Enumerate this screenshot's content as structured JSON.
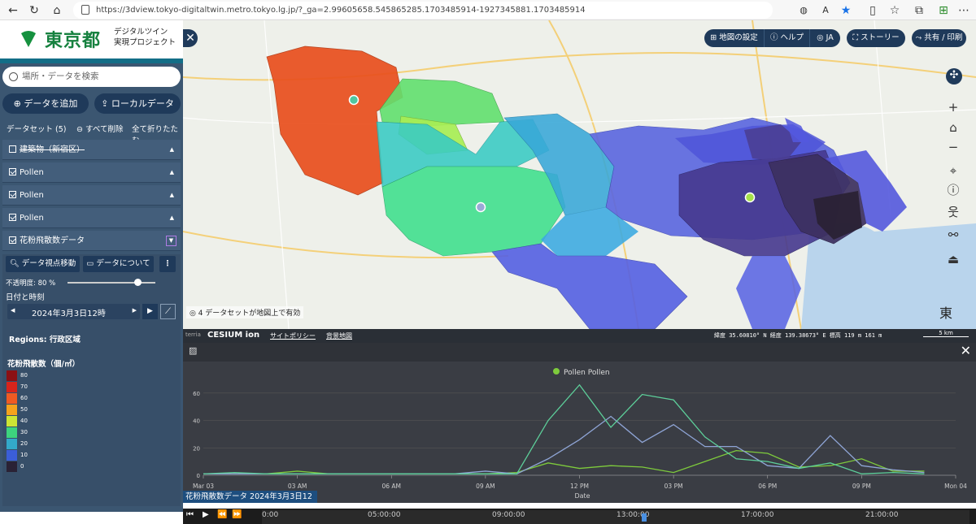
{
  "browser": {
    "url": "https://3dview.tokyo-digitaltwin.metro.tokyo.lg.jp/?_ga=2.99605658.545865285.1703485914-1927345881.1703485914",
    "icons": [
      "back-icon",
      "forward-icon",
      "reload-icon",
      "home-icon",
      "lock-icon",
      "read-aloud-icon",
      "star-icon",
      "split-icon",
      "favorites-icon",
      "collections-icon",
      "profile-icon",
      "more-icon"
    ]
  },
  "sidebar": {
    "logo_text": "東京都",
    "logo_sub1": "デジタルツイン",
    "logo_sub2": "実現プロジェクト",
    "search_placeholder": "場所・データを検索",
    "add_data": "データを追加",
    "local_data": "ローカルデータ",
    "datasets_label": "データセット (5)",
    "remove_all": "すべて削除",
    "collapse_all": "全て折りたたむ",
    "layers": [
      {
        "name": "建築物（新宿区）",
        "checked": false
      },
      {
        "name": "Pollen",
        "checked": true
      },
      {
        "name": "Pollen",
        "checked": true
      },
      {
        "name": "Pollen",
        "checked": true
      },
      {
        "name": "花粉飛散数データ",
        "checked": true
      }
    ],
    "zoom_to": "データ視点移動",
    "about_data": "データについて",
    "opacity_label": "不透明度: 80 %",
    "opacity_value": 0.8,
    "datetime_label": "日付と時刻",
    "datetime_value": "2024年3月3日12時",
    "regions": "Regions: 行政区域",
    "legend_title": "花粉飛散数（個/㎡）",
    "legend": [
      {
        "label": "80",
        "color": "#8b1014"
      },
      {
        "label": "70",
        "color": "#d8241c"
      },
      {
        "label": "60",
        "color": "#f05a22"
      },
      {
        "label": "50",
        "color": "#f6a21c"
      },
      {
        "label": "40",
        "color": "#cce534"
      },
      {
        "label": "30",
        "color": "#3dd47e"
      },
      {
        "label": "20",
        "color": "#33a9c9"
      },
      {
        "label": "10",
        "color": "#3b5ed8"
      },
      {
        "label": "0",
        "color": "#2a2235"
      }
    ]
  },
  "map": {
    "toolbar": [
      "地図の設定",
      "ヘルプ",
      "JA"
    ],
    "story": "ストーリー",
    "share": "共有 / 印刷",
    "datasets_notice": "4 データセットが地図上で有効",
    "cesium": "CESIUM ion",
    "site_policy": "サイトポリシー",
    "attribution": "背景地図",
    "coords": "緯度 35.60810° N  経度 139.38673° E  標高 119 m 161 m",
    "scale": "5 km",
    "compass_char": "東"
  },
  "chart_data": {
    "type": "line",
    "legend": "Pollen Pollen",
    "xlabel": "Date",
    "x_ticks": [
      "Mar 03",
      "03 AM",
      "06 AM",
      "09 AM",
      "12 PM",
      "03 PM",
      "06 PM",
      "09 PM",
      "Mon 04"
    ],
    "y_ticks": [
      "0",
      "20",
      "40",
      "60"
    ],
    "ylim": [
      0,
      70
    ],
    "xlim": [
      0,
      24
    ],
    "series": [
      {
        "color": "#7ecb3c",
        "x": [
          0,
          1,
          2,
          3,
          4,
          5,
          6,
          7,
          8,
          9,
          10,
          11,
          12,
          13,
          14,
          15,
          16,
          17,
          18,
          19,
          20,
          21,
          22,
          23
        ],
        "values": [
          1,
          1,
          1,
          3,
          1,
          1,
          1,
          1,
          1,
          1,
          2,
          9,
          5,
          7,
          6,
          2,
          10,
          18,
          16,
          6,
          7,
          12,
          3,
          3
        ]
      },
      {
        "color": "#8fa5d6",
        "x": [
          0,
          1,
          2,
          3,
          4,
          5,
          6,
          7,
          8,
          9,
          10,
          11,
          12,
          13,
          14,
          15,
          16,
          17,
          18,
          19,
          20,
          21,
          22,
          23
        ],
        "values": [
          1,
          1,
          1,
          1,
          1,
          1,
          1,
          1,
          1,
          3,
          1,
          12,
          26,
          43,
          24,
          37,
          21,
          21,
          7,
          5,
          29,
          7,
          4,
          2
        ]
      },
      {
        "color": "#5dcf9a",
        "x": [
          0,
          1,
          2,
          3,
          4,
          5,
          6,
          7,
          8,
          9,
          10,
          11,
          12,
          13,
          14,
          15,
          16,
          17,
          18,
          19,
          20,
          21,
          22,
          23
        ],
        "values": [
          1,
          2,
          1,
          1,
          1,
          1,
          1,
          1,
          1,
          1,
          1,
          40,
          66,
          35,
          59,
          55,
          28,
          12,
          10,
          5,
          9,
          1,
          2,
          1
        ]
      }
    ]
  },
  "timeline": {
    "label": "花粉飛散数データ 2024年3月3日12時",
    "ticks": [
      "0:00",
      "05:00:00",
      "09:00:00",
      "13:00:00",
      "17:00:00",
      "21:00:00"
    ]
  }
}
